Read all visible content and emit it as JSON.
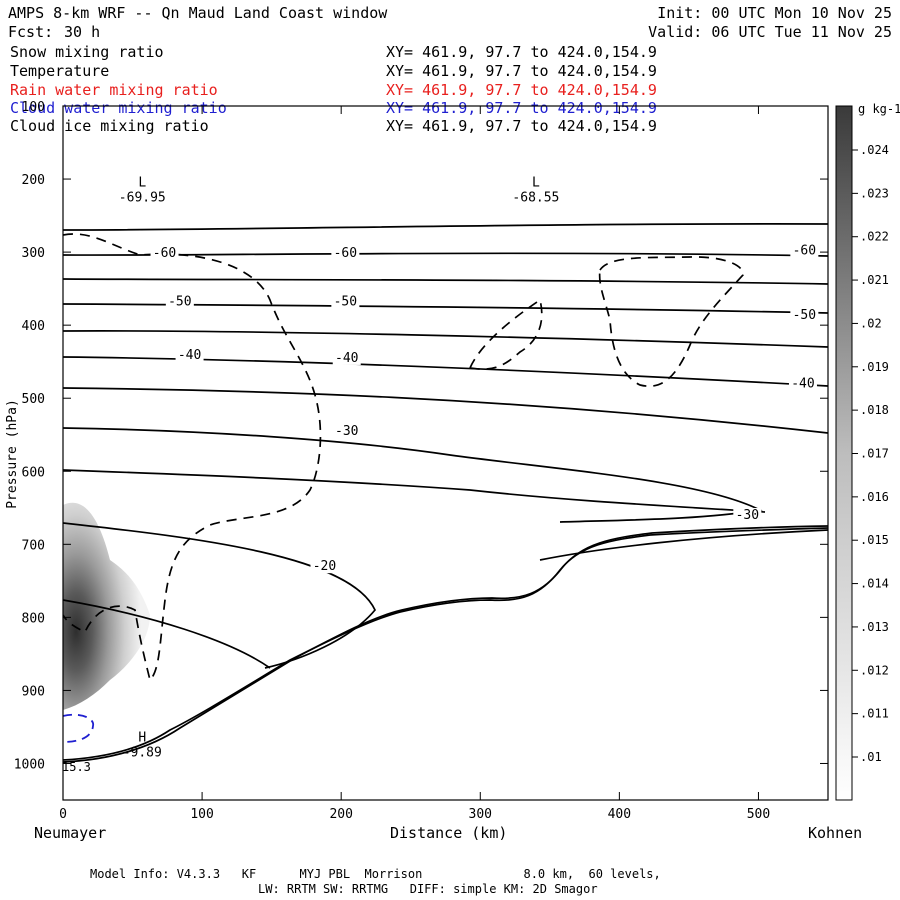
{
  "header": {
    "title": "AMPS 8-km WRF -- Qn Maud Land Coast window",
    "init": "Init: 00 UTC Mon 10 Nov 25",
    "fcst_label": "Fcst:",
    "fcst_value": "30 h",
    "valid": "Valid: 06 UTC Tue 11 Nov 25"
  },
  "fields": [
    {
      "name": "Snow mixing ratio",
      "xy": "XY= 461.9, 97.7 to 424.0,154.9",
      "color": "#000000"
    },
    {
      "name": "Temperature",
      "xy": "XY= 461.9, 97.7 to 424.0,154.9",
      "color": "#000000"
    },
    {
      "name": "Rain water mixing ratio",
      "xy": "XY= 461.9, 97.7 to 424.0,154.9",
      "color": "#e8201e"
    },
    {
      "name": "Cloud water mixing ratio",
      "xy": "XY= 461.9, 97.7 to 424.0,154.9",
      "color": "#1f1fd0"
    },
    {
      "name": "Cloud ice mixing ratio",
      "xy": "XY= 461.9, 97.7 to 424.0,154.9",
      "color": "#000000"
    }
  ],
  "footer": {
    "line1": "Model Info: V4.3.3   KF      MYJ PBL  Morrison              8.0 km,  60 levels,",
    "line2": "LW: RRTM SW: RRTMG   DIFF: simple KM: 2D Smagor"
  },
  "chart_data": {
    "type": "cross-section",
    "xlabel": "Distance (km)",
    "ylabel": "Pressure (hPa)",
    "x_left_label": "Neumayer",
    "x_right_label": "Kohnen",
    "xlim": [
      0,
      550
    ],
    "ylim": [
      1050,
      100
    ],
    "x_ticks": [
      0,
      100,
      200,
      300,
      400,
      500
    ],
    "y_ticks": [
      100,
      200,
      300,
      400,
      500,
      600,
      700,
      800,
      900,
      1000
    ],
    "colorbar": {
      "unit": "g kg-1",
      "ticks": [
        ".01",
        ".011",
        ".012",
        ".013",
        ".014",
        ".015",
        ".016",
        ".017",
        ".018",
        ".019",
        ".02",
        ".021",
        ".022",
        ".023",
        ".024"
      ]
    },
    "temperature_labels": [
      {
        "text": "-60",
        "x": 73,
        "p": 305
      },
      {
        "text": "-60",
        "x": 203,
        "p": 305
      },
      {
        "text": "-60",
        "x": 533,
        "p": 302
      },
      {
        "text": "-50",
        "x": 84,
        "p": 372
      },
      {
        "text": "-50",
        "x": 203,
        "p": 372
      },
      {
        "text": "-50",
        "x": 533,
        "p": 390
      },
      {
        "text": "-40",
        "x": 91,
        "p": 445
      },
      {
        "text": "-40",
        "x": 204,
        "p": 449
      },
      {
        "text": "-40",
        "x": 532,
        "p": 484
      },
      {
        "text": "-30",
        "x": 204,
        "p": 549
      },
      {
        "text": "-30",
        "x": 492,
        "p": 664
      },
      {
        "text": "-20",
        "x": 188,
        "p": 734
      }
    ],
    "extrema": [
      {
        "type": "L",
        "value": "-69.95",
        "x": 57,
        "p": 210
      },
      {
        "type": "L",
        "value": "-68.55",
        "x": 340,
        "p": 210
      },
      {
        "type": "H",
        "value": "-9.89",
        "x": 57,
        "p": 970
      }
    ],
    "surface_value": "15.3"
  }
}
